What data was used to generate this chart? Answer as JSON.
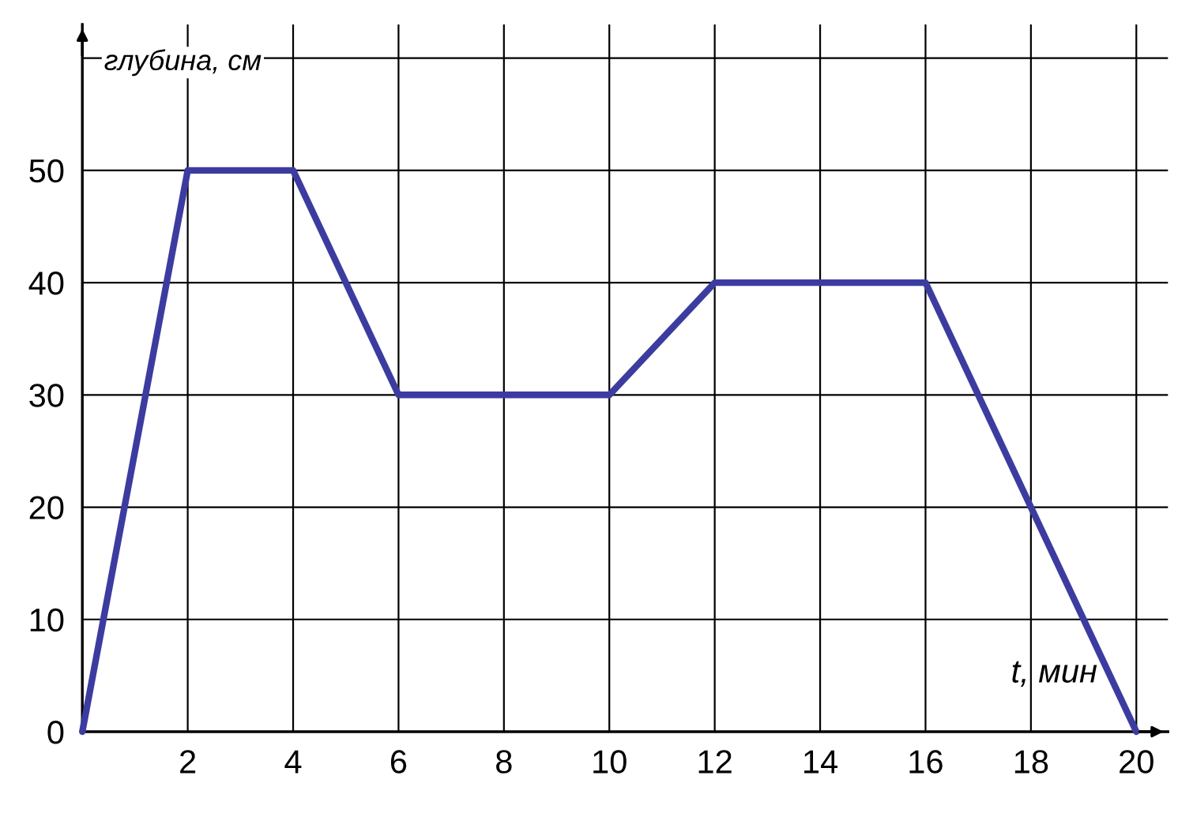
{
  "chart_data": {
    "type": "line",
    "xlabel": "t, мин",
    "ylabel": "глубина, см",
    "x": [
      0,
      2,
      4,
      6,
      10,
      12,
      16,
      20
    ],
    "series": [
      {
        "color": "#3c3ca0",
        "values": [
          0,
          50,
          50,
          30,
          30,
          40,
          40,
          0
        ]
      }
    ],
    "xlim": [
      0,
      20.6
    ],
    "ylim": [
      0,
      63
    ],
    "xticks": [
      {
        "value": 0,
        "label": null
      },
      2,
      4,
      6,
      8,
      10,
      12,
      14,
      16,
      18,
      20
    ],
    "yticks": [
      0,
      10,
      20,
      30,
      40,
      50,
      {
        "value": 60,
        "label": null
      }
    ],
    "grid": true,
    "marker": "none",
    "line_style": "solid",
    "legend": false
  }
}
